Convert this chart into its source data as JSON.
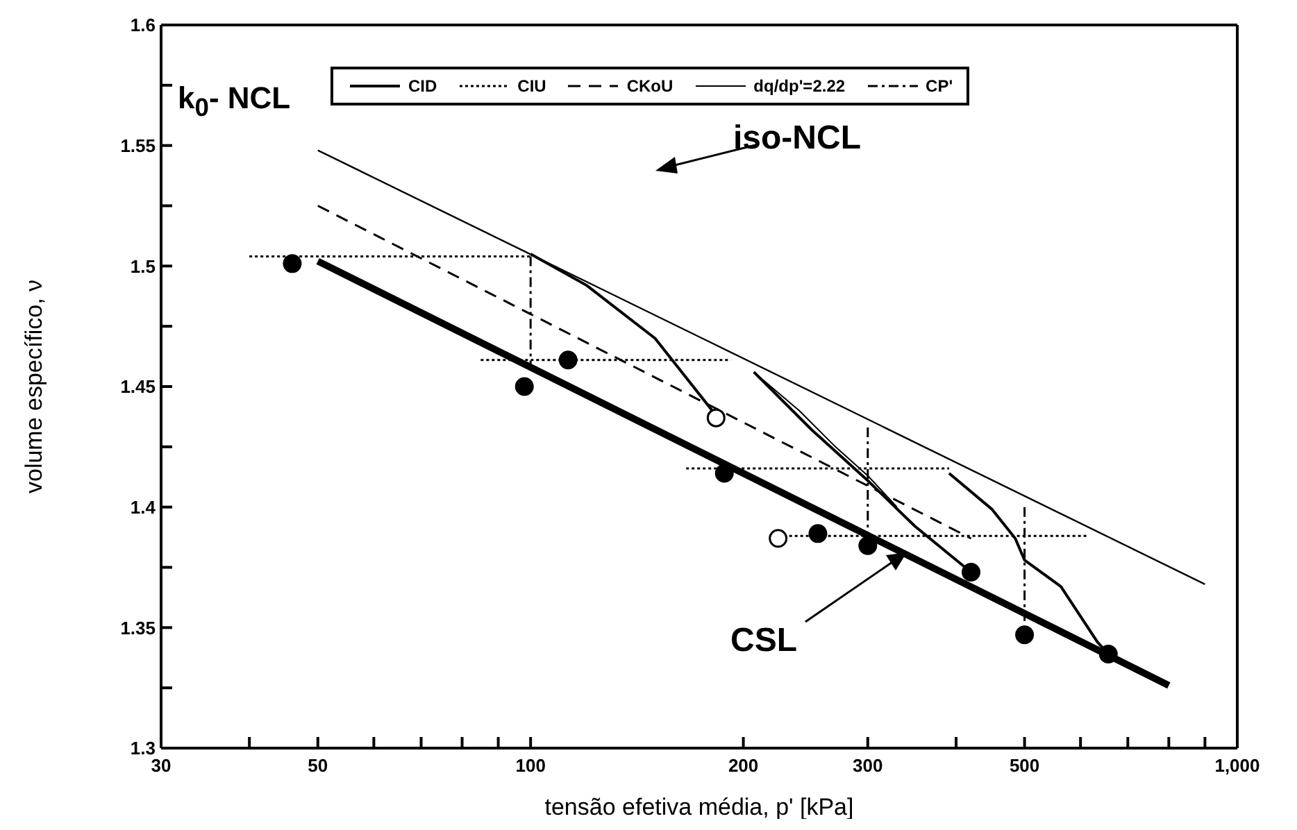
{
  "chart_data": {
    "type": "line",
    "xlabel": "tensão efetiva média, p' [kPa]",
    "ylabel": "volume específico, ν",
    "log": "x",
    "xlim": [
      30,
      1000
    ],
    "ylim": [
      1.3,
      1.6
    ],
    "xticks": [
      30,
      {
        "value": 40,
        "label": null
      },
      50,
      {
        "value": 60,
        "label": null
      },
      {
        "value": 70,
        "label": null
      },
      {
        "value": 80,
        "label": null
      },
      {
        "value": 90,
        "label": null
      },
      100,
      200,
      300,
      {
        "value": 400,
        "label": null
      },
      500,
      {
        "value": 600,
        "label": null
      },
      {
        "value": 700,
        "label": null
      },
      {
        "value": 800,
        "label": null
      },
      {
        "value": 900,
        "label": null
      },
      {
        "value": 1000,
        "label": "1,000"
      }
    ],
    "yticks": [
      1.3,
      {
        "value": 1.325,
        "label": null
      },
      1.35,
      {
        "value": 1.375,
        "label": null
      },
      1.4,
      {
        "value": 1.425,
        "label": null
      },
      1.45,
      {
        "value": 1.475,
        "label": null
      },
      1.5,
      {
        "value": 1.525,
        "label": null
      },
      1.55,
      {
        "value": 1.575,
        "label": null
      },
      1.6
    ],
    "grid": false,
    "legend": "top",
    "marker": "none",
    "annotations": [
      "k$_{0}$- NCL",
      "iso-NCL",
      "CSL"
    ],
    "series": [
      {
        "name": "CID",
        "color": "#000000",
        "line_style": "solid",
        "x": [
          100,
          120,
          150,
          183
        ],
        "values": [
          1.505,
          1.492,
          1.47,
          1.438
        ]
      },
      {
        "name": "CIU",
        "color": "#000000",
        "line_style": "dotted",
        "x": [
          40,
          100
        ],
        "values": [
          1.504,
          1.504
        ]
      },
      {
        "name": "CKoU",
        "color": "#000000",
        "line_style": "dashed",
        "x": [
          50,
          420
        ],
        "values": [
          1.525,
          1.387
        ]
      },
      {
        "name": "dq/dp'=2.22",
        "color": "#000000",
        "line_style": "solid",
        "x": [
          207,
          240,
          270,
          300,
          330
        ],
        "values": [
          1.456,
          1.44,
          1.425,
          1.413,
          1.4
        ]
      },
      {
        "name": "CP'",
        "color": "#000000",
        "line_style": "dashdot",
        "x": [
          100,
          100
        ],
        "values": [
          1.504,
          1.459
        ]
      },
      {
        "color": "#000000",
        "line_style": "solid",
        "x": [
          207,
          250,
          300,
          350,
          420
        ],
        "values": [
          1.456,
          1.432,
          1.411,
          1.392,
          1.373
        ]
      },
      {
        "color": "#000000",
        "line_style": "solid",
        "x": [
          391,
          450,
          485,
          500,
          563,
          634,
          657
        ],
        "values": [
          1.414,
          1.399,
          1.387,
          1.378,
          1.367,
          1.344,
          1.339
        ]
      },
      {
        "color": "#000000",
        "line_style": "dotted",
        "x": [
          85,
          192
        ],
        "values": [
          1.461,
          1.461
        ]
      },
      {
        "color": "#000000",
        "line_style": "dotted",
        "x": [
          166,
          391
        ],
        "values": [
          1.416,
          1.416
        ]
      },
      {
        "color": "#000000",
        "line_style": "dotted",
        "x": [
          224,
          612
        ],
        "values": [
          1.388,
          1.388
        ]
      },
      {
        "color": "#000000",
        "line_style": "dashdot",
        "x": [
          300,
          300
        ],
        "values": [
          1.433,
          1.384
        ]
      },
      {
        "color": "#000000",
        "line_style": "dashdot",
        "x": [
          500,
          500
        ],
        "values": [
          1.4,
          1.352
        ]
      },
      {
        "color": "#000000",
        "line_style": "solid",
        "x": [
          50,
          900
        ],
        "values": [
          1.548,
          1.368
        ]
      },
      {
        "color": "#000000",
        "line_style": "solid",
        "x": [
          50,
          800
        ],
        "values": [
          1.502,
          1.326
        ]
      },
      {
        "type": "scatter",
        "color": "#000000",
        "marker": "circle",
        "x": [
          46,
          98,
          113,
          188,
          255,
          300,
          420,
          500,
          657
        ],
        "values": [
          1.501,
          1.45,
          1.461,
          1.414,
          1.389,
          1.384,
          1.373,
          1.347,
          1.339
        ]
      },
      {
        "type": "scatter",
        "color": "#000000",
        "marker": "circle",
        "x": [
          183,
          224
        ],
        "values": [
          1.437,
          1.387
        ]
      }
    ]
  }
}
